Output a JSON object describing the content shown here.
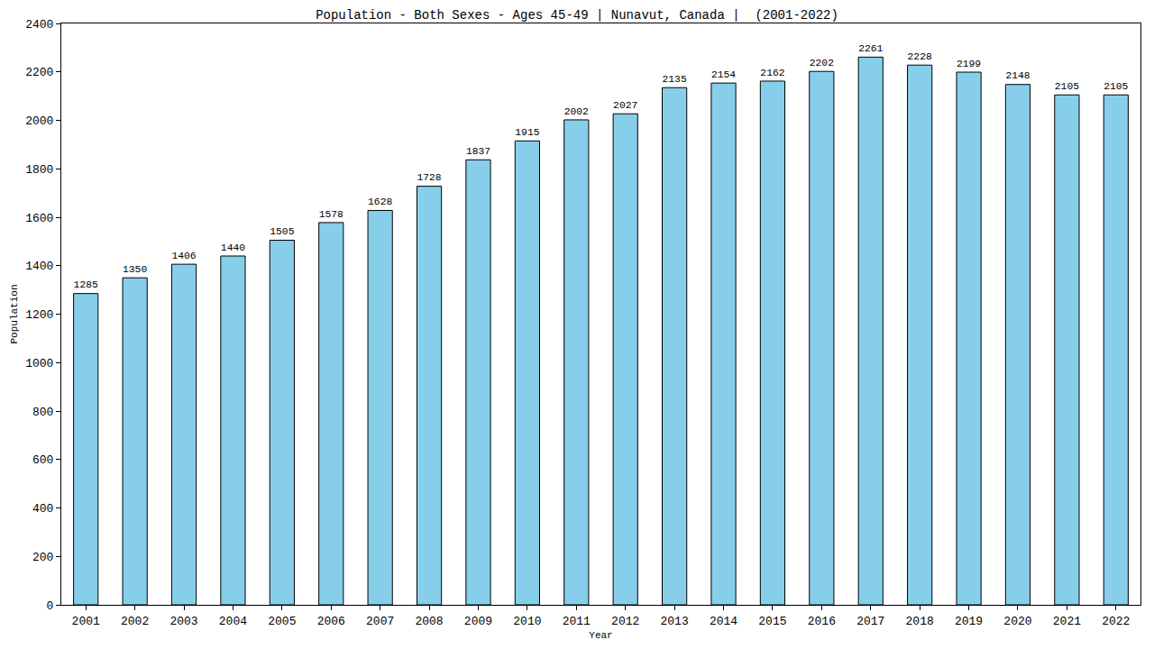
{
  "chart_data": {
    "type": "bar",
    "title": "Population - Both Sexes - Ages 45-49 | Nunavut, Canada |  (2001-2022)",
    "x_label": "Year",
    "y_label": "Population",
    "categories": [
      "2001",
      "2002",
      "2003",
      "2004",
      "2005",
      "2006",
      "2007",
      "2008",
      "2009",
      "2010",
      "2011",
      "2012",
      "2013",
      "2014",
      "2015",
      "2016",
      "2017",
      "2018",
      "2019",
      "2020",
      "2021",
      "2022"
    ],
    "values": [
      1285,
      1350,
      1406,
      1440,
      1505,
      1578,
      1628,
      1728,
      1837,
      1915,
      2002,
      2027,
      2135,
      2154,
      2162,
      2202,
      2261,
      2228,
      2199,
      2148,
      2105,
      2105
    ],
    "color": "#87ceeb",
    "ylim": [
      0,
      2400
    ],
    "yticks": [
      0,
      200,
      400,
      600,
      800,
      1000,
      1200,
      1400,
      1600,
      1800,
      2000,
      2200,
      2400
    ],
    "grid": false,
    "data_labels": true
  }
}
